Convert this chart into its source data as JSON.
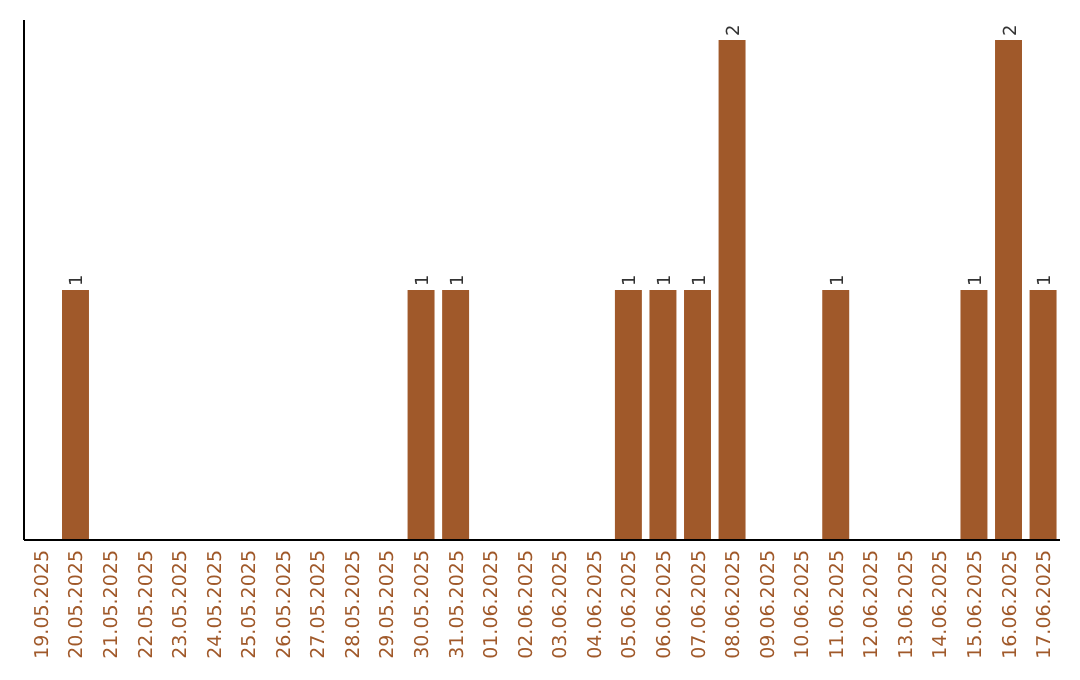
{
  "chart_data": {
    "type": "bar",
    "categories": [
      "19.05.2025",
      "20.05.2025",
      "21.05.2025",
      "22.05.2025",
      "23.05.2025",
      "24.05.2025",
      "25.05.2025",
      "26.05.2025",
      "27.05.2025",
      "28.05.2025",
      "29.05.2025",
      "30.05.2025",
      "31.05.2025",
      "01.06.2025",
      "02.06.2025",
      "03.06.2025",
      "04.06.2025",
      "05.06.2025",
      "06.06.2025",
      "07.06.2025",
      "08.06.2025",
      "09.06.2025",
      "10.06.2025",
      "11.06.2025",
      "12.06.2025",
      "13.06.2025",
      "14.06.2025",
      "15.06.2025",
      "16.06.2025",
      "17.06.2025"
    ],
    "values": [
      0,
      1,
      0,
      0,
      0,
      0,
      0,
      0,
      0,
      0,
      0,
      1,
      1,
      0,
      0,
      0,
      0,
      1,
      1,
      1,
      2,
      0,
      0,
      1,
      0,
      0,
      0,
      1,
      2,
      1
    ],
    "value_labels": [
      null,
      "1",
      null,
      null,
      null,
      null,
      null,
      null,
      null,
      null,
      null,
      "1",
      "1",
      null,
      null,
      null,
      null,
      "1",
      "1",
      "1",
      "2",
      null,
      null,
      "1",
      null,
      null,
      null,
      "1",
      "2",
      "1"
    ],
    "color": "#a0592a",
    "tick_labels": "x"
  }
}
